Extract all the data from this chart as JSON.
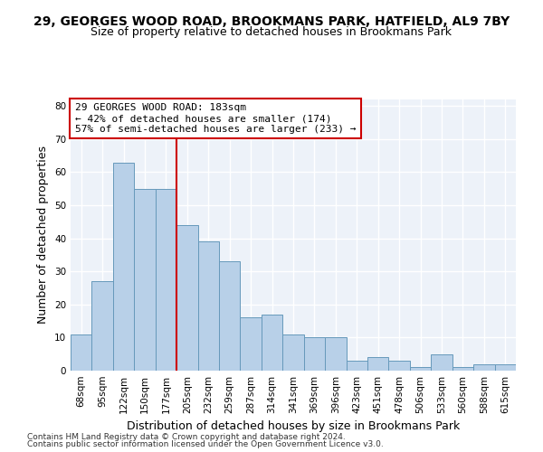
{
  "title": "29, GEORGES WOOD ROAD, BROOKMANS PARK, HATFIELD, AL9 7BY",
  "subtitle": "Size of property relative to detached houses in Brookmans Park",
  "xlabel": "Distribution of detached houses by size in Brookmans Park",
  "ylabel": "Number of detached properties",
  "categories": [
    "68sqm",
    "95sqm",
    "122sqm",
    "150sqm",
    "177sqm",
    "205sqm",
    "232sqm",
    "259sqm",
    "287sqm",
    "314sqm",
    "341sqm",
    "369sqm",
    "396sqm",
    "423sqm",
    "451sqm",
    "478sqm",
    "506sqm",
    "533sqm",
    "560sqm",
    "588sqm",
    "615sqm"
  ],
  "values": [
    11,
    27,
    63,
    55,
    55,
    44,
    39,
    33,
    16,
    17,
    11,
    10,
    10,
    3,
    4,
    3,
    1,
    5,
    1,
    2,
    2
  ],
  "bar_color": "#b8d0e8",
  "bar_edge_color": "#6699bb",
  "vline_x": 4.5,
  "vline_color": "#cc0000",
  "annotation_line1": "29 GEORGES WOOD ROAD: 183sqm",
  "annotation_line2": "← 42% of detached houses are smaller (174)",
  "annotation_line3": "57% of semi-detached houses are larger (233) →",
  "annotation_box_color": "#ffffff",
  "annotation_box_edge": "#cc0000",
  "ylim": [
    0,
    82
  ],
  "yticks": [
    0,
    10,
    20,
    30,
    40,
    50,
    60,
    70,
    80
  ],
  "footer1": "Contains HM Land Registry data © Crown copyright and database right 2024.",
  "footer2": "Contains public sector information licensed under the Open Government Licence v3.0.",
  "bg_color": "#edf2f9",
  "fig_bg_color": "#ffffff",
  "title_fontsize": 10,
  "subtitle_fontsize": 9,
  "tick_fontsize": 7.5,
  "ylabel_fontsize": 9,
  "xlabel_fontsize": 9,
  "annotation_fontsize": 8,
  "footer_fontsize": 6.5,
  "grid_color": "#ffffff",
  "grid_linewidth": 1.0
}
